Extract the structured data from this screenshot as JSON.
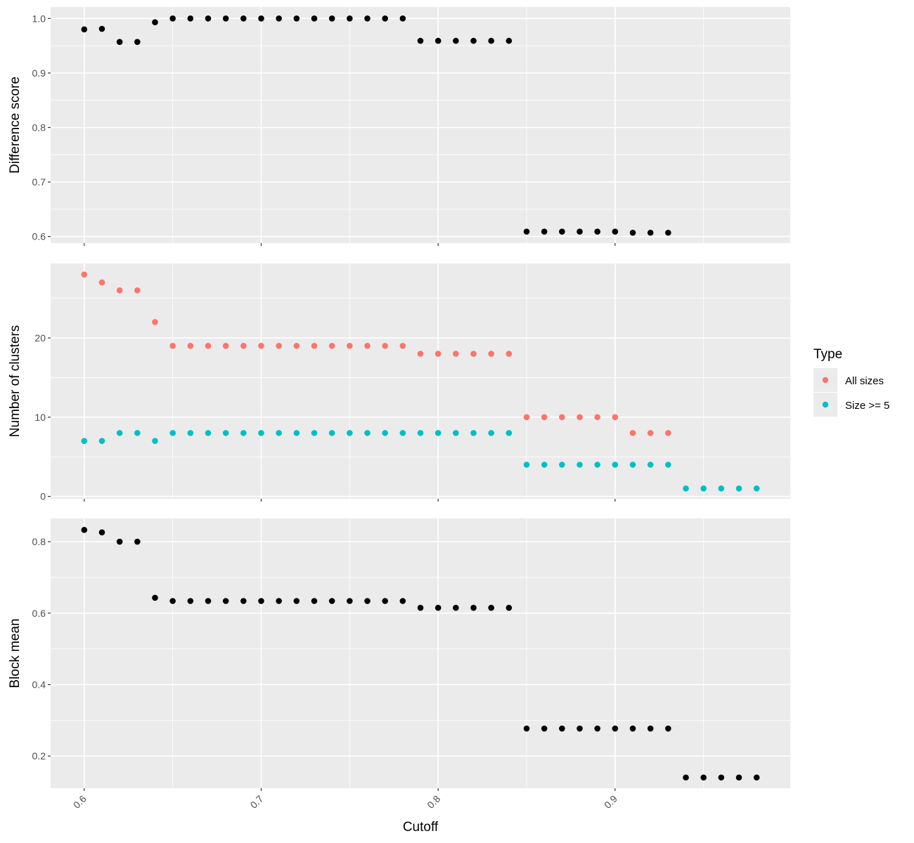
{
  "chart_data": {
    "type": "scatter",
    "xlabel": "Cutoff",
    "xlim": [
      0.581,
      0.999
    ],
    "x_ticks": [
      "0.6",
      "0.7",
      "0.8",
      "0.9"
    ],
    "legend": {
      "title": "Type",
      "position": "right",
      "entries": [
        {
          "label": "All sizes",
          "color": "#F8766D"
        },
        {
          "label": "Size >= 5",
          "color": "#00BFC4"
        }
      ]
    },
    "grid": true,
    "panels": [
      {
        "ylabel": "Difference score",
        "ylim": [
          0.588,
          1.021
        ],
        "y_ticks": [
          "0.6",
          "0.7",
          "0.8",
          "0.9",
          "1.0"
        ],
        "series": [
          {
            "color": "#000000",
            "x": [
              0.6,
              0.61,
              0.62,
              0.63,
              0.64,
              0.65,
              0.66,
              0.67,
              0.68,
              0.69,
              0.7,
              0.71,
              0.72,
              0.73,
              0.74,
              0.75,
              0.76,
              0.77,
              0.78,
              0.79,
              0.8,
              0.81,
              0.82,
              0.83,
              0.84,
              0.85,
              0.86,
              0.87,
              0.88,
              0.89,
              0.9,
              0.91,
              0.92,
              0.93
            ],
            "y": [
              0.98,
              0.981,
              0.957,
              0.957,
              0.993,
              1.0,
              1.0,
              1.0,
              1.0,
              1.0,
              1.0,
              1.0,
              1.0,
              1.0,
              1.0,
              1.0,
              1.0,
              1.0,
              1.0,
              0.959,
              0.959,
              0.959,
              0.959,
              0.959,
              0.959,
              0.609,
              0.609,
              0.609,
              0.609,
              0.609,
              0.609,
              0.607,
              0.607,
              0.607
            ]
          }
        ]
      },
      {
        "ylabel": "Number of clusters",
        "ylim": [
          -0.3,
          29.4
        ],
        "y_ticks": [
          "0",
          "10",
          "20"
        ],
        "series": [
          {
            "name": "All sizes",
            "color": "#F8766D",
            "x": [
              0.6,
              0.61,
              0.62,
              0.63,
              0.64,
              0.65,
              0.66,
              0.67,
              0.68,
              0.69,
              0.7,
              0.71,
              0.72,
              0.73,
              0.74,
              0.75,
              0.76,
              0.77,
              0.78,
              0.79,
              0.8,
              0.81,
              0.82,
              0.83,
              0.84,
              0.85,
              0.86,
              0.87,
              0.88,
              0.89,
              0.9,
              0.91,
              0.92,
              0.93
            ],
            "y": [
              28,
              27,
              26,
              26,
              22,
              19,
              19,
              19,
              19,
              19,
              19,
              19,
              19,
              19,
              19,
              19,
              19,
              19,
              19,
              18,
              18,
              18,
              18,
              18,
              18,
              10,
              10,
              10,
              10,
              10,
              10,
              8,
              8,
              8
            ]
          },
          {
            "name": "Size >= 5",
            "color": "#00BFC4",
            "x": [
              0.6,
              0.61,
              0.62,
              0.63,
              0.64,
              0.65,
              0.66,
              0.67,
              0.68,
              0.69,
              0.7,
              0.71,
              0.72,
              0.73,
              0.74,
              0.75,
              0.76,
              0.77,
              0.78,
              0.79,
              0.8,
              0.81,
              0.82,
              0.83,
              0.84,
              0.85,
              0.86,
              0.87,
              0.88,
              0.89,
              0.9,
              0.91,
              0.92,
              0.93,
              0.94,
              0.95,
              0.96,
              0.97,
              0.98
            ],
            "y": [
              7,
              7,
              8,
              8,
              7,
              8,
              8,
              8,
              8,
              8,
              8,
              8,
              8,
              8,
              8,
              8,
              8,
              8,
              8,
              8,
              8,
              8,
              8,
              8,
              8,
              4,
              4,
              4,
              4,
              4,
              4,
              4,
              4,
              4,
              1,
              1,
              1,
              1,
              1
            ]
          }
        ]
      },
      {
        "ylabel": "Block mean",
        "ylim": [
          0.11,
          0.865
        ],
        "y_ticks": [
          "0.2",
          "0.4",
          "0.6",
          "0.8"
        ],
        "series": [
          {
            "color": "#000000",
            "x": [
              0.6,
              0.61,
              0.62,
              0.63,
              0.64,
              0.65,
              0.66,
              0.67,
              0.68,
              0.69,
              0.7,
              0.71,
              0.72,
              0.73,
              0.74,
              0.75,
              0.76,
              0.77,
              0.78,
              0.79,
              0.8,
              0.81,
              0.82,
              0.83,
              0.84,
              0.85,
              0.86,
              0.87,
              0.88,
              0.89,
              0.9,
              0.91,
              0.92,
              0.93,
              0.94,
              0.95,
              0.96,
              0.97,
              0.98
            ],
            "y": [
              0.833,
              0.826,
              0.8,
              0.8,
              0.643,
              0.634,
              0.634,
              0.634,
              0.634,
              0.634,
              0.634,
              0.634,
              0.634,
              0.634,
              0.634,
              0.634,
              0.634,
              0.634,
              0.634,
              0.615,
              0.615,
              0.615,
              0.615,
              0.615,
              0.615,
              0.277,
              0.277,
              0.277,
              0.277,
              0.277,
              0.277,
              0.277,
              0.277,
              0.277,
              0.14,
              0.14,
              0.14,
              0.14,
              0.14
            ]
          }
        ]
      }
    ]
  }
}
